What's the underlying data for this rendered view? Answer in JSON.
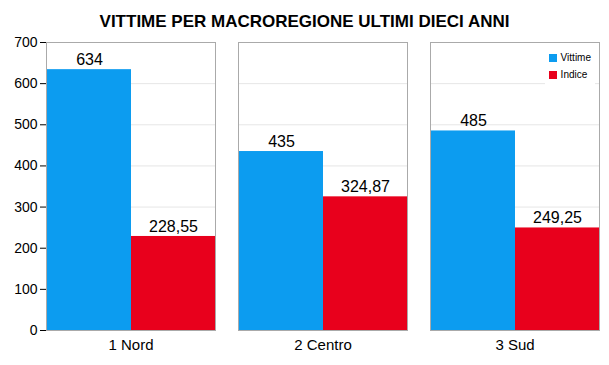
{
  "chart_data": {
    "type": "bar",
    "title": "VITTIME PER MACROREGIONE ULTIMI DIECI ANNI",
    "categories": [
      "1 Nord",
      "2 Centro",
      "3 Sud"
    ],
    "series": [
      {
        "name": "Vittime",
        "color": "#0c9cf0",
        "values": [
          634,
          435,
          485
        ]
      },
      {
        "name": "Indice",
        "color": "#e8001c",
        "values": [
          228.55,
          324.87,
          249.25
        ],
        "value_labels": [
          "228,55",
          "324,87",
          "249,25"
        ]
      }
    ],
    "ylim": [
      0,
      700
    ],
    "yticks": [
      0,
      100,
      200,
      300,
      400,
      500,
      600,
      700
    ],
    "grid": true,
    "legend": "top-right",
    "data_labels": true
  }
}
